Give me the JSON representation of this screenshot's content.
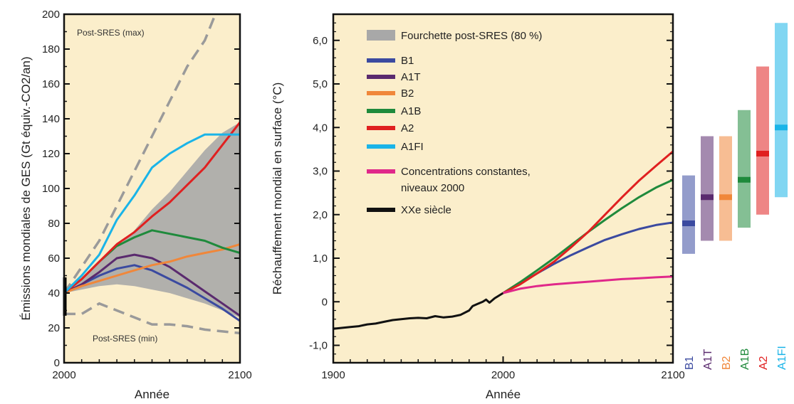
{
  "chart_data": [
    {
      "type": "line",
      "xlabel": "Année",
      "ylabel": "Émissions mondiales de GES (Gt équiv.-CO2/an)",
      "xlim": [
        2000,
        2100
      ],
      "ylim": [
        0,
        200
      ],
      "x_ticks": [
        "2000",
        "2100"
      ],
      "y_ticks": [
        "0",
        "20",
        "40",
        "60",
        "80",
        "100",
        "120",
        "140",
        "160",
        "180",
        "200"
      ],
      "x": [
        2000,
        2010,
        2020,
        2030,
        2040,
        2050,
        2060,
        2070,
        2080,
        2090,
        2100
      ],
      "annotations": {
        "max": "Post-SRES (max)",
        "min": "Post-SRES (min)"
      },
      "band": {
        "name": "Fourchette post-SRES (80 %)",
        "color": "#a8a8a8",
        "low": [
          40,
          42,
          44,
          45,
          44,
          42,
          40,
          37,
          34,
          30,
          26
        ],
        "high": [
          40,
          48,
          58,
          66,
          76,
          88,
          98,
          110,
          122,
          132,
          138
        ]
      },
      "dashed": [
        {
          "name": "Post-SRES (max)",
          "color": "#9a9a9a",
          "values": [
            40,
            55,
            70,
            90,
            110,
            130,
            150,
            170,
            185,
            210,
            235
          ]
        },
        {
          "name": "Post-SRES (min)",
          "color": "#9a9a9a",
          "values": [
            28,
            28,
            34,
            30,
            26,
            22,
            22,
            21,
            19,
            18,
            17
          ]
        }
      ],
      "series": [
        {
          "name": "B1",
          "color": "#3b4aa0",
          "values": [
            40,
            45,
            50,
            54,
            56,
            53,
            48,
            43,
            37,
            31,
            24
          ]
        },
        {
          "name": "A1T",
          "color": "#5a2a6e",
          "values": [
            40,
            45,
            52,
            60,
            62,
            60,
            55,
            48,
            41,
            34,
            27
          ]
        },
        {
          "name": "B2",
          "color": "#f0873a",
          "values": [
            40,
            44,
            47,
            50,
            53,
            56,
            58,
            61,
            63,
            65,
            68
          ]
        },
        {
          "name": "A1B",
          "color": "#1f8a3c",
          "values": [
            40,
            48,
            58,
            67,
            72,
            76,
            74,
            72,
            70,
            66,
            63
          ]
        },
        {
          "name": "A2",
          "color": "#e02020",
          "values": [
            40,
            48,
            58,
            68,
            75,
            84,
            92,
            102,
            112,
            125,
            138
          ]
        },
        {
          "name": "A1FI",
          "color": "#1ab4e8",
          "values": [
            40,
            50,
            62,
            82,
            96,
            112,
            120,
            126,
            131,
            131,
            131
          ]
        }
      ],
      "start_bar": [
        27,
        49
      ]
    },
    {
      "type": "line",
      "xlabel": "Année",
      "ylabel": "Réchauffement mondial en surface (°C)",
      "xlim": [
        1900,
        2100
      ],
      "ylim": [
        -1.4,
        6.6
      ],
      "x_ticks": [
        "1900",
        "2000",
        "2100"
      ],
      "y_ticks": [
        "-1,0",
        "0",
        "1,0",
        "2,0",
        "3,0",
        "4,0",
        "5,0",
        "6,0"
      ],
      "historical": {
        "name": "XXe siècle",
        "color": "#111111",
        "x": [
          1900,
          1905,
          1910,
          1915,
          1920,
          1925,
          1930,
          1935,
          1940,
          1945,
          1950,
          1955,
          1960,
          1965,
          1970,
          1975,
          1980,
          1982,
          1985,
          1988,
          1990,
          1992,
          1995,
          2000
        ],
        "values": [
          -0.62,
          -0.6,
          -0.58,
          -0.56,
          -0.52,
          -0.5,
          -0.46,
          -0.42,
          -0.4,
          -0.38,
          -0.37,
          -0.38,
          -0.33,
          -0.36,
          -0.34,
          -0.3,
          -0.2,
          -0.1,
          -0.05,
          0.0,
          0.05,
          -0.02,
          0.08,
          0.2
        ]
      },
      "x": [
        2000,
        2010,
        2020,
        2030,
        2040,
        2050,
        2060,
        2070,
        2080,
        2090,
        2100
      ],
      "series": [
        {
          "name": "B1",
          "color": "#3b4aa0",
          "values": [
            0.2,
            0.42,
            0.65,
            0.87,
            1.07,
            1.25,
            1.42,
            1.55,
            1.67,
            1.76,
            1.82
          ]
        },
        {
          "name": "A1B",
          "color": "#1f8a3c",
          "values": [
            0.2,
            0.45,
            0.72,
            1.0,
            1.3,
            1.6,
            1.88,
            2.15,
            2.4,
            2.62,
            2.8
          ]
        },
        {
          "name": "A2",
          "color": "#e02020",
          "values": [
            0.2,
            0.4,
            0.65,
            0.92,
            1.25,
            1.6,
            2.0,
            2.4,
            2.78,
            3.12,
            3.45
          ]
        },
        {
          "name": "Concentrations constantes, niveaux 2000",
          "color": "#e0288a",
          "values": [
            0.2,
            0.3,
            0.36,
            0.4,
            0.43,
            0.46,
            0.49,
            0.52,
            0.54,
            0.56,
            0.58
          ]
        }
      ],
      "legend": [
        {
          "label": "Fourchette post-SRES (80 %)",
          "color": "#a8a8a8",
          "wide": true
        },
        {
          "label": "B1",
          "color": "#3b4aa0"
        },
        {
          "label": "A1T",
          "color": "#5a2a6e"
        },
        {
          "label": "B2",
          "color": "#f0873a"
        },
        {
          "label": "A1B",
          "color": "#1f8a3c"
        },
        {
          "label": "A2",
          "color": "#e02020"
        },
        {
          "label": "A1FI",
          "color": "#1ab4e8"
        },
        {
          "label": "Concentrations constantes,\nniveaux 2000",
          "color": "#e0288a"
        },
        {
          "label": "XXe siècle",
          "color": "#111111"
        }
      ],
      "legend_position": "top-left"
    },
    {
      "type": "range_bars",
      "unit": "°C",
      "scale_shared_with": "Réchauffement mondial en surface (°C)",
      "bars": [
        {
          "name": "B1",
          "color": "#3b4aa0",
          "low": 1.1,
          "high": 2.9,
          "best": 1.8
        },
        {
          "name": "A1T",
          "color": "#5a2a6e",
          "low": 1.4,
          "high": 3.8,
          "best": 2.4
        },
        {
          "name": "B2",
          "color": "#f0873a",
          "low": 1.4,
          "high": 3.8,
          "best": 2.4
        },
        {
          "name": "A1B",
          "color": "#1f8a3c",
          "low": 1.7,
          "high": 4.4,
          "best": 2.8
        },
        {
          "name": "A2",
          "color": "#e02020",
          "low": 2.0,
          "high": 5.4,
          "best": 3.4
        },
        {
          "name": "A1FI",
          "color": "#1ab4e8",
          "low": 2.4,
          "high": 6.4,
          "best": 4.0
        }
      ]
    }
  ]
}
